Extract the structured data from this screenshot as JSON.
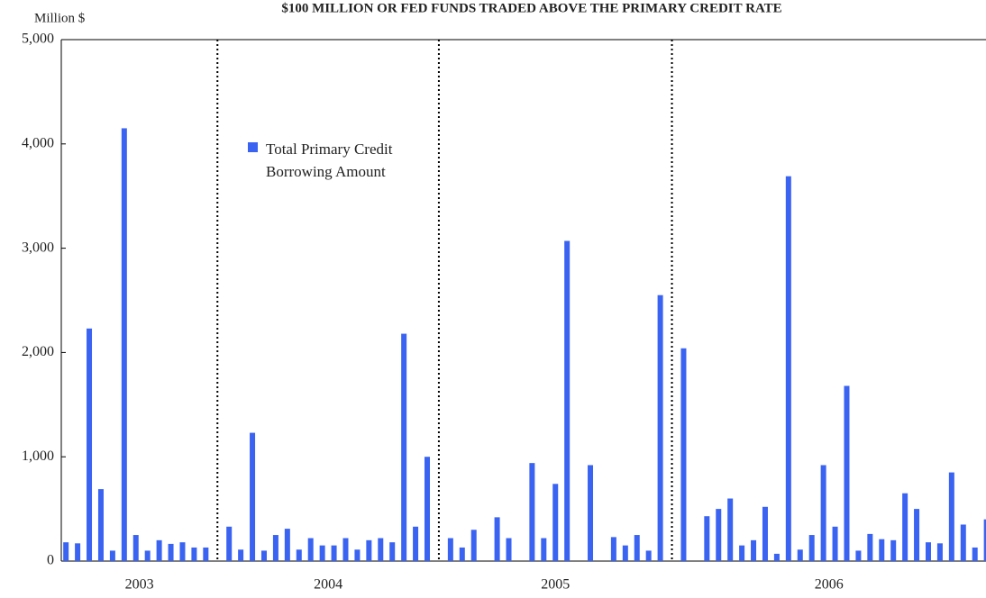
{
  "chart_data": {
    "type": "bar",
    "title": "$100 MILLION OR FED FUNDS TRADED ABOVE THE PRIMARY CREDIT RATE",
    "y_label": "Million $",
    "color": "#3a63f2",
    "ylim": [
      0,
      5000
    ],
    "yticks": [
      0,
      {
        "value": 1000,
        "label": "1,000"
      },
      {
        "value": 2000,
        "label": "2,000"
      },
      {
        "value": 3000,
        "label": "3,000"
      },
      {
        "value": 4000,
        "label": "4,000"
      },
      {
        "value": 5000,
        "label": "5,000"
      }
    ],
    "legend": {
      "position": "upper left"
    },
    "series": [
      {
        "name": "Total Primary Credit Borrowing Amount",
        "color": "#3a63f2"
      }
    ],
    "groups": [
      {
        "label": "2003",
        "values": [
          180,
          170,
          2230,
          690,
          100,
          4150,
          250,
          100,
          200,
          165,
          180,
          130,
          130
        ]
      },
      {
        "label": "2004",
        "values": [
          330,
          110,
          1230,
          100,
          250,
          310,
          110,
          220,
          150,
          150,
          220,
          110,
          200,
          220,
          180,
          2180,
          330,
          1000
        ]
      },
      {
        "label": "2005",
        "values": [
          220,
          130,
          300,
          null,
          420,
          220,
          null,
          940,
          220,
          740,
          3070,
          null,
          920,
          null,
          230,
          150,
          250,
          100,
          2550
        ]
      },
      {
        "label": "2006",
        "values": [
          2040,
          null,
          430,
          500,
          600,
          150,
          200,
          520,
          70,
          3690,
          110,
          250,
          920,
          330,
          1680,
          100,
          260,
          210,
          200,
          650,
          500,
          180,
          170,
          850,
          350,
          130,
          400
        ]
      }
    ]
  }
}
